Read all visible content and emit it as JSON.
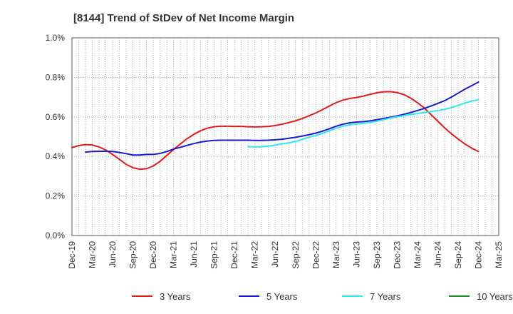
{
  "chart_data": {
    "type": "line",
    "title": "[8144]  Trend of StDev of Net Income Margin",
    "xlabel": "",
    "ylabel": "",
    "x_ticks": [
      "Dec-19",
      "Mar-20",
      "Jun-20",
      "Sep-20",
      "Dec-20",
      "Mar-21",
      "Jun-21",
      "Sep-21",
      "Dec-21",
      "Mar-22",
      "Jun-22",
      "Sep-22",
      "Dec-22",
      "Mar-23",
      "Jun-23",
      "Sep-23",
      "Dec-23",
      "Mar-24",
      "Jun-24",
      "Sep-24",
      "Dec-24",
      "Mar-25"
    ],
    "y_ticks": [
      "0.0%",
      "0.2%",
      "0.4%",
      "0.6%",
      "0.8%",
      "1.0%"
    ],
    "ylim": [
      0,
      1.0
    ],
    "y_unit": "%",
    "grid": true,
    "legend_position": "bottom",
    "series": [
      {
        "name": "3 Years",
        "color": "#e01b1b",
        "points": [
          [
            "Dec-19",
            0.445
          ],
          [
            "Jan-20",
            0.455
          ],
          [
            "Feb-20",
            0.46
          ],
          [
            "Mar-20",
            0.458
          ],
          [
            "Apr-20",
            0.448
          ],
          [
            "May-20",
            0.432
          ],
          [
            "Jun-20",
            0.41
          ],
          [
            "Jul-20",
            0.385
          ],
          [
            "Aug-20",
            0.36
          ],
          [
            "Sep-20",
            0.343
          ],
          [
            "Oct-20",
            0.335
          ],
          [
            "Nov-20",
            0.338
          ],
          [
            "Dec-20",
            0.352
          ],
          [
            "Jan-21",
            0.375
          ],
          [
            "Feb-21",
            0.405
          ],
          [
            "Mar-21",
            0.435
          ],
          [
            "Apr-21",
            0.463
          ],
          [
            "May-21",
            0.49
          ],
          [
            "Jun-21",
            0.512
          ],
          [
            "Jul-21",
            0.53
          ],
          [
            "Aug-21",
            0.543
          ],
          [
            "Sep-21",
            0.55
          ],
          [
            "Oct-21",
            0.553
          ],
          [
            "Nov-21",
            0.553
          ],
          [
            "Dec-21",
            0.552
          ],
          [
            "Jan-22",
            0.552
          ],
          [
            "Feb-22",
            0.55
          ],
          [
            "Mar-22",
            0.549
          ],
          [
            "Apr-22",
            0.55
          ],
          [
            "May-22",
            0.552
          ],
          [
            "Jun-22",
            0.556
          ],
          [
            "Jul-22",
            0.563
          ],
          [
            "Aug-22",
            0.571
          ],
          [
            "Sep-22",
            0.58
          ],
          [
            "Oct-22",
            0.592
          ],
          [
            "Nov-22",
            0.606
          ],
          [
            "Dec-22",
            0.62
          ],
          [
            "Jan-23",
            0.637
          ],
          [
            "Feb-23",
            0.655
          ],
          [
            "Mar-23",
            0.672
          ],
          [
            "Apr-23",
            0.685
          ],
          [
            "May-23",
            0.693
          ],
          [
            "Jun-23",
            0.698
          ],
          [
            "Jul-23",
            0.705
          ],
          [
            "Aug-23",
            0.714
          ],
          [
            "Sep-23",
            0.722
          ],
          [
            "Oct-23",
            0.727
          ],
          [
            "Nov-23",
            0.728
          ],
          [
            "Dec-23",
            0.723
          ],
          [
            "Jan-24",
            0.713
          ],
          [
            "Feb-24",
            0.695
          ],
          [
            "Mar-24",
            0.672
          ],
          [
            "Apr-24",
            0.645
          ],
          [
            "May-24",
            0.612
          ],
          [
            "Jun-24",
            0.578
          ],
          [
            "Jul-24",
            0.545
          ],
          [
            "Aug-24",
            0.515
          ],
          [
            "Sep-24",
            0.488
          ],
          [
            "Oct-24",
            0.463
          ],
          [
            "Nov-24",
            0.442
          ],
          [
            "Dec-24",
            0.425
          ]
        ]
      },
      {
        "name": "5 Years",
        "color": "#1a1acf",
        "points": [
          [
            "Feb-20",
            0.422
          ],
          [
            "Mar-20",
            0.425
          ],
          [
            "Apr-20",
            0.426
          ],
          [
            "May-20",
            0.426
          ],
          [
            "Jun-20",
            0.425
          ],
          [
            "Jul-20",
            0.42
          ],
          [
            "Aug-20",
            0.414
          ],
          [
            "Sep-20",
            0.407
          ],
          [
            "Oct-20",
            0.407
          ],
          [
            "Nov-20",
            0.41
          ],
          [
            "Dec-20",
            0.41
          ],
          [
            "Jan-21",
            0.415
          ],
          [
            "Feb-21",
            0.425
          ],
          [
            "Mar-21",
            0.437
          ],
          [
            "Apr-21",
            0.446
          ],
          [
            "May-21",
            0.456
          ],
          [
            "Jun-21",
            0.465
          ],
          [
            "Jul-21",
            0.473
          ],
          [
            "Aug-21",
            0.478
          ],
          [
            "Sep-21",
            0.481
          ],
          [
            "Oct-21",
            0.482
          ],
          [
            "Nov-21",
            0.482
          ],
          [
            "Dec-21",
            0.482
          ],
          [
            "Jan-22",
            0.482
          ],
          [
            "Feb-22",
            0.482
          ],
          [
            "Mar-22",
            0.481
          ],
          [
            "Apr-22",
            0.481
          ],
          [
            "May-22",
            0.482
          ],
          [
            "Jun-22",
            0.484
          ],
          [
            "Jul-22",
            0.487
          ],
          [
            "Aug-22",
            0.492
          ],
          [
            "Sep-22",
            0.497
          ],
          [
            "Oct-22",
            0.503
          ],
          [
            "Nov-22",
            0.51
          ],
          [
            "Dec-22",
            0.518
          ],
          [
            "Jan-23",
            0.528
          ],
          [
            "Feb-23",
            0.54
          ],
          [
            "Mar-23",
            0.553
          ],
          [
            "Apr-23",
            0.563
          ],
          [
            "May-23",
            0.57
          ],
          [
            "Jun-23",
            0.574
          ],
          [
            "Jul-23",
            0.576
          ],
          [
            "Aug-23",
            0.58
          ],
          [
            "Sep-23",
            0.586
          ],
          [
            "Oct-23",
            0.592
          ],
          [
            "Nov-23",
            0.598
          ],
          [
            "Dec-23",
            0.605
          ],
          [
            "Jan-24",
            0.613
          ],
          [
            "Feb-24",
            0.622
          ],
          [
            "Mar-24",
            0.632
          ],
          [
            "Apr-24",
            0.643
          ],
          [
            "May-24",
            0.655
          ],
          [
            "Jun-24",
            0.668
          ],
          [
            "Jul-24",
            0.682
          ],
          [
            "Aug-24",
            0.7
          ],
          [
            "Sep-24",
            0.72
          ],
          [
            "Oct-24",
            0.74
          ],
          [
            "Nov-24",
            0.758
          ],
          [
            "Dec-24",
            0.776
          ]
        ]
      },
      {
        "name": "7 Years",
        "color": "#2ee8f0",
        "points": [
          [
            "Feb-22",
            0.45
          ],
          [
            "Mar-22",
            0.448
          ],
          [
            "Apr-22",
            0.449
          ],
          [
            "May-22",
            0.452
          ],
          [
            "Jun-22",
            0.457
          ],
          [
            "Jul-22",
            0.463
          ],
          [
            "Aug-22",
            0.469
          ],
          [
            "Sep-22",
            0.476
          ],
          [
            "Oct-22",
            0.486
          ],
          [
            "Nov-22",
            0.497
          ],
          [
            "Dec-22",
            0.506
          ],
          [
            "Jan-23",
            0.517
          ],
          [
            "Feb-23",
            0.53
          ],
          [
            "Mar-23",
            0.543
          ],
          [
            "Apr-23",
            0.553
          ],
          [
            "May-23",
            0.56
          ],
          [
            "Jun-23",
            0.563
          ],
          [
            "Jul-23",
            0.567
          ],
          [
            "Aug-23",
            0.572
          ],
          [
            "Sep-23",
            0.578
          ],
          [
            "Oct-23",
            0.586
          ],
          [
            "Nov-23",
            0.594
          ],
          [
            "Dec-23",
            0.601
          ],
          [
            "Jan-24",
            0.607
          ],
          [
            "Feb-24",
            0.612
          ],
          [
            "Mar-24",
            0.617
          ],
          [
            "Apr-24",
            0.622
          ],
          [
            "May-24",
            0.627
          ],
          [
            "Jun-24",
            0.632
          ],
          [
            "Jul-24",
            0.638
          ],
          [
            "Aug-24",
            0.647
          ],
          [
            "Sep-24",
            0.658
          ],
          [
            "Oct-24",
            0.67
          ],
          [
            "Nov-24",
            0.68
          ],
          [
            "Dec-24",
            0.687
          ]
        ]
      },
      {
        "name": "10 Years",
        "color": "#1e8c1e",
        "points": []
      }
    ]
  }
}
